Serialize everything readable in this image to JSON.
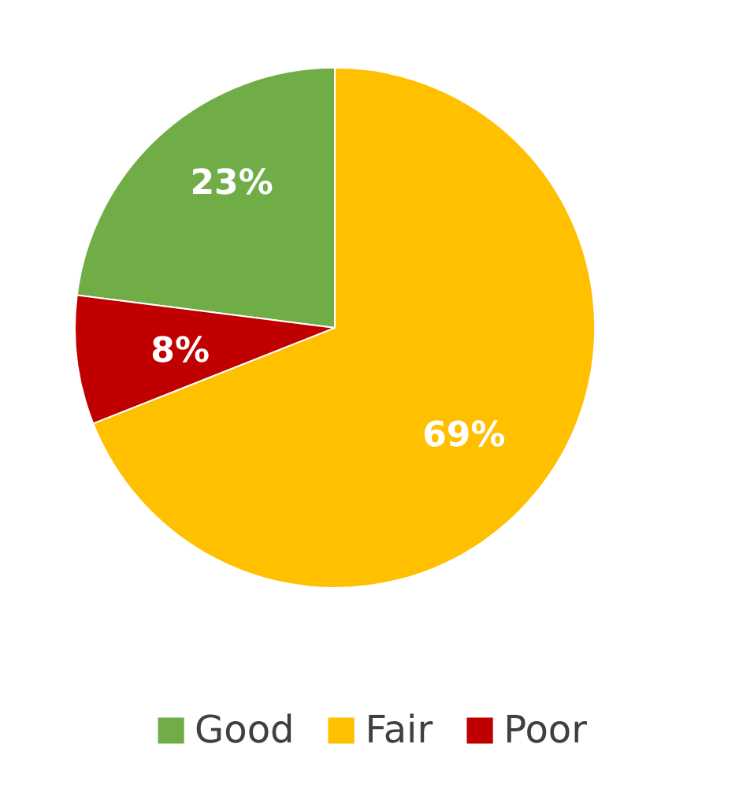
{
  "chart_data": {
    "type": "pie",
    "categories": [
      "Good",
      "Fair",
      "Poor"
    ],
    "values": [
      23,
      69,
      8
    ],
    "colors": [
      "#70ad47",
      "#ffc000",
      "#c00000"
    ],
    "value_labels": [
      "23%",
      "69%",
      "8%"
    ],
    "legend": "bottom"
  }
}
